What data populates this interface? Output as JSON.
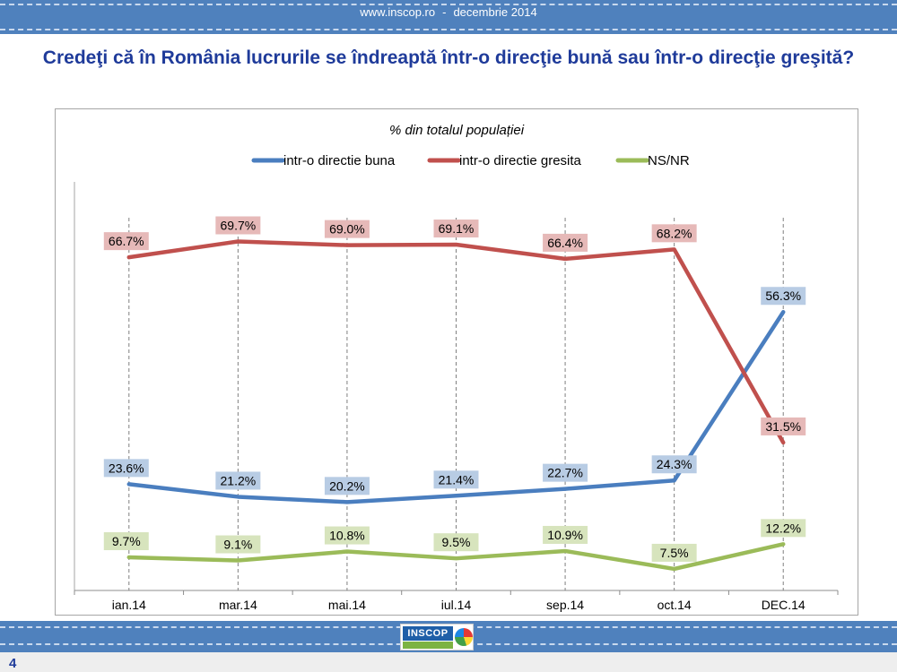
{
  "header": {
    "site": "www.inscop.ro",
    "separator": "-",
    "date": "decembrie 2014"
  },
  "title": "Credeţi că în România lucrurile se îndreaptă într-o direcţie bună sau într-o direcţie greşită?",
  "footer": {
    "page_number": "4",
    "logo_text": "INSCOP"
  },
  "colors": {
    "header_bar": "#4f81bd",
    "title": "#1f3b9a",
    "series_buna": "#4a7ebf",
    "series_gresita": "#c0504d",
    "series_nsnr": "#9bbb59"
  },
  "chart_data": {
    "type": "line",
    "subtitle": "% din totalul populației",
    "categories": [
      "ian.14",
      "mar.14",
      "mai.14",
      "iul.14",
      "sep.14",
      "oct.14",
      "DEC.14"
    ],
    "series": [
      {
        "name": "intr-o directie buna",
        "color": "#4a7ebf",
        "label_bg": "#b8cce4",
        "values": [
          23.6,
          21.2,
          20.2,
          21.4,
          22.7,
          24.3,
          56.3
        ],
        "labels": [
          "23.6%",
          "21.2%",
          "20.2%",
          "21.4%",
          "22.7%",
          "24.3%",
          "56.3%"
        ]
      },
      {
        "name": "intr-o directie gresita",
        "color": "#c0504d",
        "label_bg": "#e6b9b8",
        "values": [
          66.7,
          69.7,
          69.0,
          69.1,
          66.4,
          68.2,
          31.5
        ],
        "labels": [
          "66.7%",
          "69.7%",
          "69.0%",
          "69.1%",
          "66.4%",
          "68.2%",
          "31.5%"
        ]
      },
      {
        "name": "NS/NR",
        "color": "#9bbb59",
        "label_bg": "#d7e4bd",
        "values": [
          9.7,
          9.1,
          10.8,
          9.5,
          10.9,
          7.5,
          12.2
        ],
        "labels": [
          "9.7%",
          "9.1%",
          "10.8%",
          "9.5%",
          "10.9%",
          "7.5%",
          "12.2%"
        ]
      }
    ],
    "ylim": [
      0,
      80
    ],
    "grid": "vertical-dashed",
    "legend_position": "top"
  }
}
